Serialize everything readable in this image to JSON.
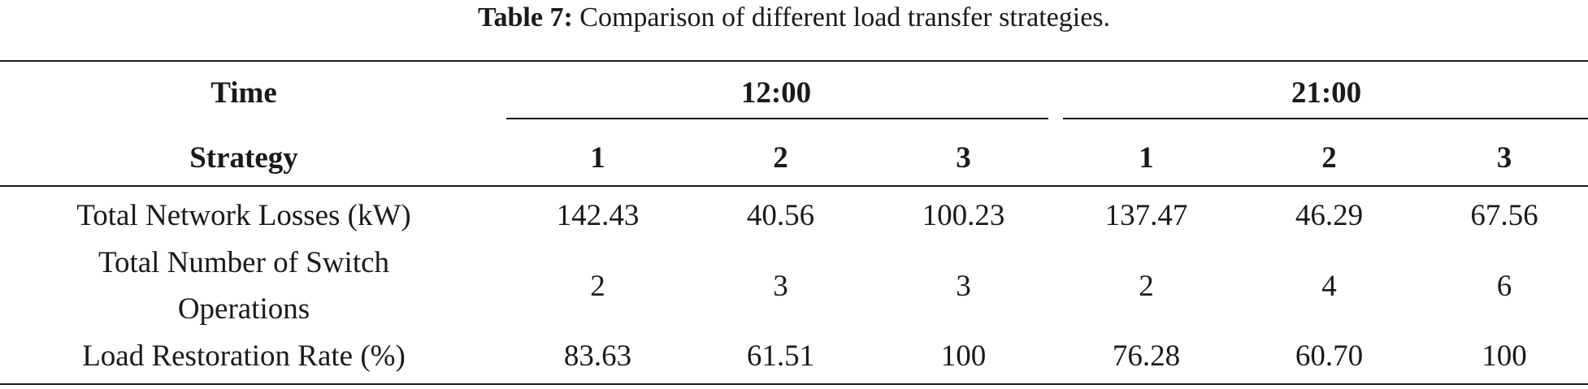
{
  "caption": {
    "label": "Table 7:",
    "text": "Comparison of different load transfer strategies."
  },
  "table": {
    "header": {
      "time_label": "Time",
      "strategy_label": "Strategy",
      "groups": [
        "12:00",
        "21:00"
      ],
      "strategies": [
        "1",
        "2",
        "3",
        "1",
        "2",
        "3"
      ]
    },
    "rows": [
      {
        "metric": "Total Network Losses (kW)",
        "values": [
          "142.43",
          "40.56",
          "100.23",
          "137.47",
          "46.29",
          "67.56"
        ]
      },
      {
        "metric_line1": "Total Number of Switch",
        "metric_line2": "Operations",
        "values": [
          "2",
          "3",
          "3",
          "2",
          "4",
          "6"
        ]
      },
      {
        "metric": "Load Restoration Rate (%)",
        "values": [
          "83.63",
          "61.51",
          "100",
          "76.28",
          "60.70",
          "100"
        ]
      }
    ]
  }
}
